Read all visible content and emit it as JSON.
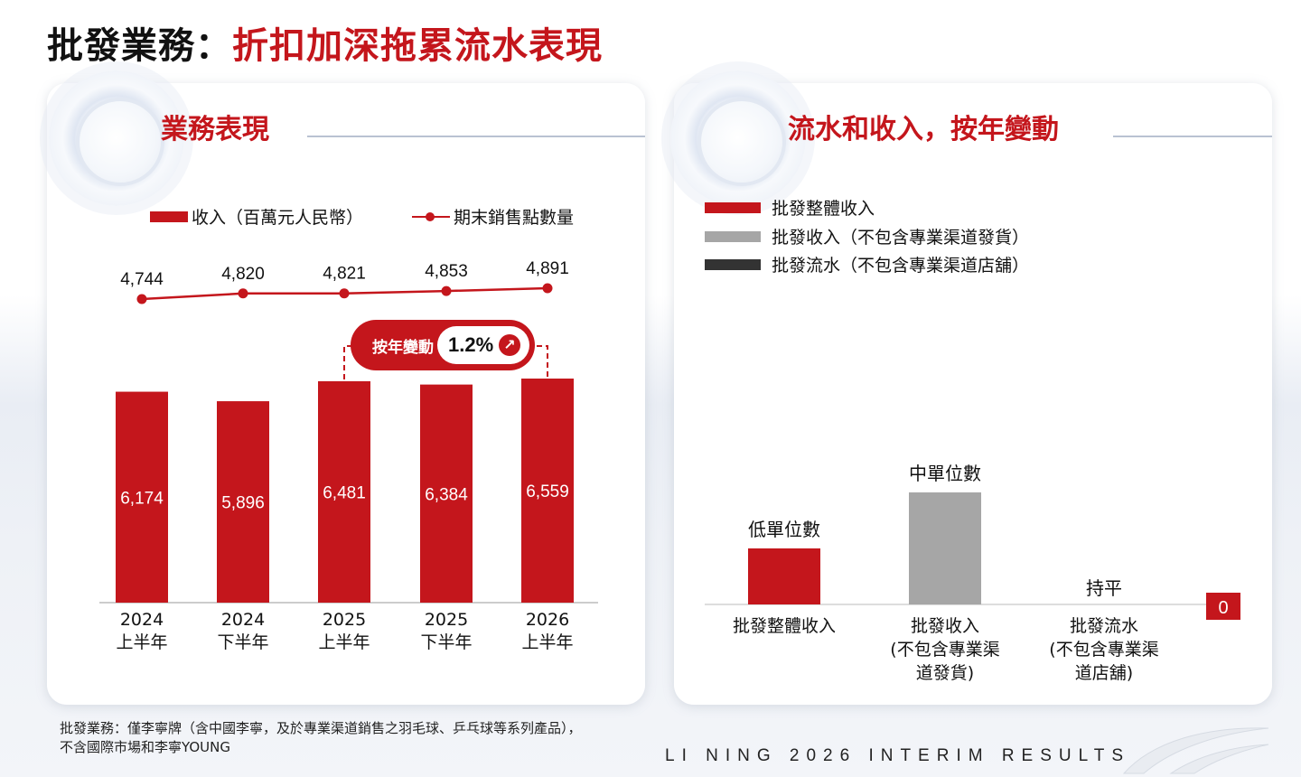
{
  "title": {
    "main": "批發業務：",
    "highlight": "折扣加深拖累流水表現"
  },
  "left_panel": {
    "title": "業務表現",
    "legend": {
      "bar": "收入（百萬元人民幣）",
      "line": "期末銷售點數量"
    },
    "yoy": {
      "label": "按年變動",
      "value": "1.2%",
      "icon": "arrow-up-right-icon"
    }
  },
  "right_panel": {
    "title": "流水和收入，按年變動",
    "legend": [
      {
        "label": "批發整體收入",
        "color": "#c4161c"
      },
      {
        "label": "批發收入（不包含專業渠道發貨）",
        "color": "#a6a6a6"
      },
      {
        "label": "批發流水（不包含專業渠道店舖）",
        "color": "#333333"
      }
    ]
  },
  "chart_data": [
    {
      "type": "bar",
      "title": "業務表現",
      "categories": [
        "2024\n上半年",
        "2024\n下半年",
        "2025\n上半年",
        "2025\n下半年",
        "2026\n上半年"
      ],
      "series": [
        {
          "name": "收入（百萬元人民幣）",
          "type": "bar",
          "values": [
            6174,
            5896,
            6481,
            6384,
            6559
          ],
          "labels": [
            "6,174",
            "5,896",
            "6,481",
            "6,384",
            "6,559"
          ],
          "color": "#c4161c"
        },
        {
          "name": "期末銷售點數量",
          "type": "line",
          "values": [
            4744,
            4820,
            4821,
            4853,
            4891
          ],
          "labels": [
            "4,744",
            "4,820",
            "4,821",
            "4,853",
            "4,891"
          ],
          "color": "#c4161c"
        }
      ],
      "annotation": {
        "text": "按年變動",
        "value": "1.2%",
        "between": [
          "2025\n上半年",
          "2026\n上半年"
        ]
      },
      "legend": "top-center",
      "grid": false
    },
    {
      "type": "bar",
      "title": "流水和收入，按年變動",
      "categories": [
        "批發整體收入",
        "批發收入\n(不包含專業渠\n道發貨)",
        "批發流水\n(不包含專業渠\n道店舖)"
      ],
      "values": [
        1,
        2,
        0
      ],
      "labels": [
        "低單位數",
        "中單位數",
        "持平"
      ],
      "colors": [
        "#c4161c",
        "#a6a6a6",
        "#333333"
      ],
      "extra_label": "0",
      "legend": "top-left",
      "grid": false
    }
  ],
  "footnote": {
    "line1": "批發業務：僅李寧牌（含中國李寧，及於專業渠道銷售之羽毛球、乒乓球等系列產品），",
    "line2": "不含國際市場和李寧YOUNG"
  },
  "footer": {
    "brand": "LI NING 2026 INTERIM RESULTS",
    "logo": "li-ning-logo-icon"
  }
}
